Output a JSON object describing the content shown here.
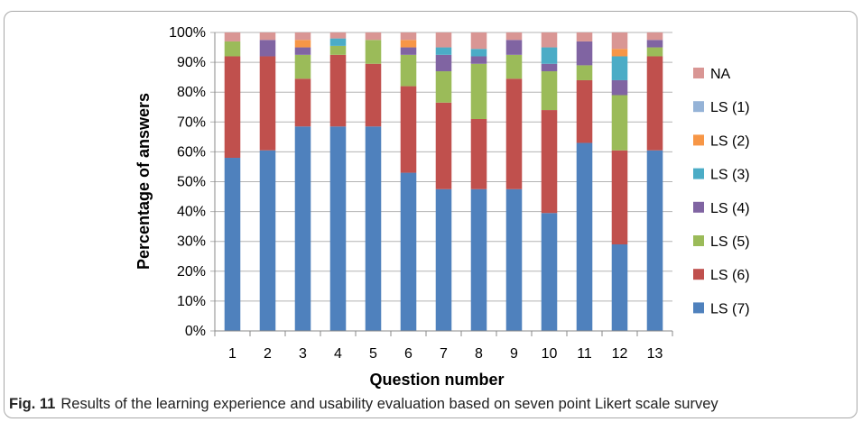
{
  "caption": {
    "label": "Fig. 11",
    "text": "Results of the learning experience and usability evaluation based on seven point Likert scale survey"
  },
  "chart_data": {
    "type": "bar",
    "stacked": true,
    "xlabel": "Question number",
    "ylabel": "Percentage of answers",
    "ylim": [
      0,
      100
    ],
    "yticks": [
      "0%",
      "10%",
      "20%",
      "30%",
      "40%",
      "50%",
      "60%",
      "70%",
      "80%",
      "90%",
      "100%"
    ],
    "categories": [
      "1",
      "2",
      "3",
      "4",
      "5",
      "6",
      "7",
      "8",
      "9",
      "10",
      "11",
      "12",
      "13"
    ],
    "legend_position": "right",
    "series": [
      {
        "name": "LS (7)",
        "color": "#4f81bd",
        "values": [
          58,
          60.5,
          68.5,
          68.5,
          68.5,
          53,
          47.5,
          47.5,
          47.5,
          39.5,
          63,
          29,
          60.5
        ]
      },
      {
        "name": "LS (6)",
        "color": "#c0504d",
        "values": [
          34,
          31.5,
          16,
          24,
          21,
          29,
          29,
          23.5,
          37,
          34.5,
          21,
          31.5,
          31.5
        ]
      },
      {
        "name": "LS (5)",
        "color": "#9bbb59",
        "values": [
          5,
          0,
          8,
          3,
          8,
          10.5,
          10.5,
          18.5,
          8,
          13,
          5,
          18.5,
          3
        ]
      },
      {
        "name": "LS (4)",
        "color": "#8064a2",
        "values": [
          0,
          5.5,
          2.5,
          0,
          0,
          2.5,
          5.5,
          2.5,
          5,
          2.5,
          8,
          5,
          2.5
        ]
      },
      {
        "name": "LS (3)",
        "color": "#4bacc6",
        "values": [
          0,
          0,
          0,
          2.5,
          0,
          0,
          2.5,
          2.5,
          0,
          5.5,
          0,
          8,
          0
        ]
      },
      {
        "name": "LS (2)",
        "color": "#f79646",
        "values": [
          0,
          0,
          2.5,
          0,
          0,
          2.5,
          0,
          0,
          0,
          0,
          0,
          2.5,
          0
        ]
      },
      {
        "name": "LS (1)",
        "color": "#95b3d7",
        "values": [
          0,
          0,
          0,
          0,
          0,
          0,
          0,
          0,
          0,
          0,
          0,
          0,
          0
        ]
      },
      {
        "name": "NA",
        "color": "#d99694",
        "values": [
          3,
          2.5,
          2.5,
          2,
          2.5,
          2.5,
          5,
          5.5,
          2.5,
          5,
          3,
          5.5,
          2.5
        ]
      }
    ]
  }
}
